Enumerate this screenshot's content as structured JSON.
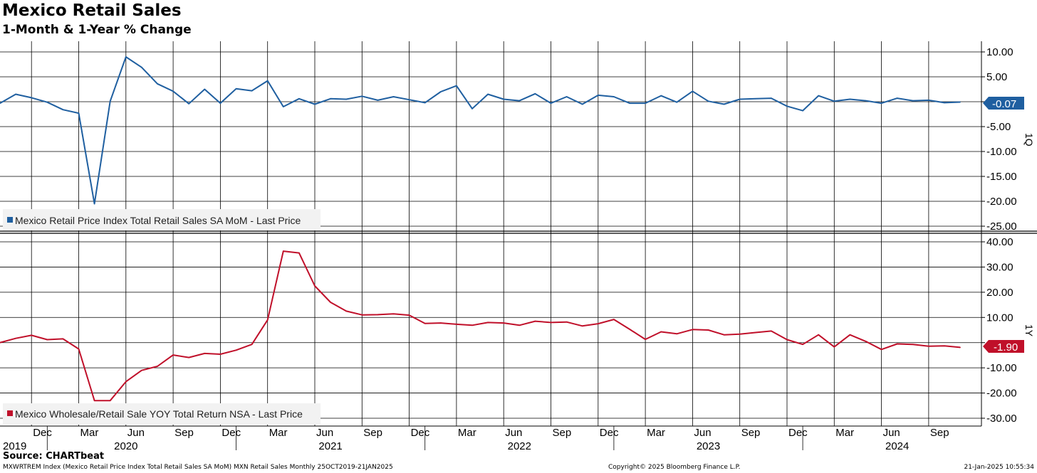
{
  "header": {
    "title": "Mexico Retail Sales",
    "subtitle": "1-Month & 1-Year % Change"
  },
  "footer": {
    "source": "Source: CHARTbeat",
    "description": "MXWRTREM Index (Mexico Retail Price Index Total Retail Sales SA MoM) MXN Retail Sales  Monthly 25OCT2019-21JAN2025",
    "copyright": "Copyright© 2025 Bloomberg Finance L.P.",
    "timestamp": "21-Jan-2025 10:55:34"
  },
  "colors": {
    "mom_series": "#1f5fa0",
    "yoy_series": "#c0102a",
    "grid": "#000000"
  },
  "x_axis": {
    "months": [
      "Dec",
      "Mar",
      "Jun",
      "Sep",
      "Dec",
      "Mar",
      "Jun",
      "Sep",
      "Dec",
      "Mar",
      "Jun",
      "Sep",
      "Dec",
      "Mar",
      "Jun",
      "Sep",
      "Dec",
      "Mar",
      "Jun",
      "Sep"
    ],
    "years": [
      "2019",
      "2020",
      "2021",
      "2022",
      "2023",
      "2024"
    ]
  },
  "chart_data": [
    {
      "type": "line",
      "panel_label": "1Q",
      "legend": "Mexico Retail Price Index Total Retail Sales SA MoM - Last Price",
      "legend_position": "bottom-left",
      "last_value_label": "-0.07",
      "x": [
        "2019-10",
        "2019-11",
        "2019-12",
        "2020-01",
        "2020-02",
        "2020-03",
        "2020-04",
        "2020-05",
        "2020-06",
        "2020-07",
        "2020-08",
        "2020-09",
        "2020-10",
        "2020-11",
        "2020-12",
        "2021-01",
        "2021-02",
        "2021-03",
        "2021-04",
        "2021-05",
        "2021-06",
        "2021-07",
        "2021-08",
        "2021-09",
        "2021-10",
        "2021-11",
        "2021-12",
        "2022-01",
        "2022-02",
        "2022-03",
        "2022-04",
        "2022-05",
        "2022-06",
        "2022-07",
        "2022-08",
        "2022-09",
        "2022-10",
        "2022-11",
        "2022-12",
        "2023-01",
        "2023-02",
        "2023-03",
        "2023-04",
        "2023-05",
        "2023-06",
        "2023-07",
        "2023-08",
        "2023-09",
        "2023-10",
        "2023-11",
        "2023-12",
        "2024-01",
        "2024-02",
        "2024-03",
        "2024-04",
        "2024-05",
        "2024-06",
        "2024-07",
        "2024-08",
        "2024-09",
        "2024-10",
        "2024-11"
      ],
      "series": [
        {
          "name": "Mexico Retail Price Index Total Retail Sales SA MoM - Last Price",
          "values": [
            -0.3,
            1.5,
            0.8,
            -0.1,
            -1.6,
            -2.3,
            -20.5,
            0.1,
            9.0,
            6.9,
            3.6,
            2.1,
            -0.4,
            2.5,
            -0.3,
            2.6,
            2.2,
            4.2,
            -1.0,
            0.6,
            -0.5,
            0.6,
            0.5,
            1.1,
            0.3,
            1.0,
            0.4,
            -0.2,
            2.0,
            3.2,
            -1.4,
            1.5,
            0.5,
            0.2,
            1.6,
            -0.3,
            1.0,
            -0.5,
            1.3,
            1.0,
            -0.3,
            -0.3,
            1.2,
            -0.1,
            2.1,
            0.1,
            -0.5,
            0.5,
            0.6,
            0.7,
            -0.9,
            -1.8,
            1.2,
            0.1,
            0.5,
            0.2,
            -0.3,
            0.7,
            0.2,
            0.3,
            -0.2,
            -0.07
          ]
        }
      ],
      "ylim": [
        -25,
        10
      ],
      "y_ticks": [
        10,
        5,
        0,
        -5,
        -10,
        -15,
        -20,
        -25
      ],
      "y_tick_labels": [
        "10.00",
        "5.00",
        "",
        "-5.00",
        "-10.00",
        "-15.00",
        "-20.00",
        "-25.00"
      ],
      "grid": true
    },
    {
      "type": "line",
      "panel_label": "1Y",
      "legend": "Mexico Wholesale/Retail Sale YOY Total Return NSA - Last Price",
      "legend_position": "bottom-left",
      "last_value_label": "-1.90",
      "x": [
        "2019-10",
        "2019-11",
        "2019-12",
        "2020-01",
        "2020-02",
        "2020-03",
        "2020-04",
        "2020-05",
        "2020-06",
        "2020-07",
        "2020-08",
        "2020-09",
        "2020-10",
        "2020-11",
        "2020-12",
        "2021-01",
        "2021-02",
        "2021-03",
        "2021-04",
        "2021-05",
        "2021-06",
        "2021-07",
        "2021-08",
        "2021-09",
        "2021-10",
        "2021-11",
        "2021-12",
        "2022-01",
        "2022-02",
        "2022-03",
        "2022-04",
        "2022-05",
        "2022-06",
        "2022-07",
        "2022-08",
        "2022-09",
        "2022-10",
        "2022-11",
        "2022-12",
        "2023-01",
        "2023-02",
        "2023-03",
        "2023-04",
        "2023-05",
        "2023-06",
        "2023-07",
        "2023-08",
        "2023-09",
        "2023-10",
        "2023-11",
        "2023-12",
        "2024-01",
        "2024-02",
        "2024-03",
        "2024-04",
        "2024-05",
        "2024-06",
        "2024-07",
        "2024-08",
        "2024-09",
        "2024-10",
        "2024-11"
      ],
      "series": [
        {
          "name": "Mexico Wholesale/Retail Sale YOY Total Return NSA - Last Price",
          "values": [
            0.0,
            1.7,
            2.9,
            1.2,
            1.5,
            -2.5,
            -23.0,
            -23.0,
            -15.5,
            -11.0,
            -9.4,
            -4.9,
            -5.9,
            -4.3,
            -4.6,
            -3.0,
            -0.7,
            9.0,
            36.3,
            35.6,
            22.5,
            16.0,
            12.5,
            11.0,
            11.1,
            11.4,
            10.9,
            7.6,
            7.8,
            7.3,
            6.9,
            8.0,
            7.8,
            6.9,
            8.5,
            8.0,
            8.2,
            6.6,
            7.5,
            9.2,
            5.3,
            1.3,
            4.3,
            3.5,
            5.2,
            5.0,
            3.1,
            3.4,
            4.0,
            4.6,
            1.2,
            -0.7,
            3.1,
            -1.7,
            3.1,
            0.5,
            -2.7,
            -0.5,
            -0.7,
            -1.4,
            -1.3,
            -1.9
          ]
        }
      ],
      "ylim": [
        -30,
        40
      ],
      "y_ticks": [
        40,
        30,
        20,
        10,
        0,
        -10,
        -20,
        -30
      ],
      "y_tick_labels": [
        "40.00",
        "30.00",
        "20.00",
        "10.00",
        "",
        "-10.00",
        "-20.00",
        "-30.00"
      ],
      "grid": true
    }
  ]
}
